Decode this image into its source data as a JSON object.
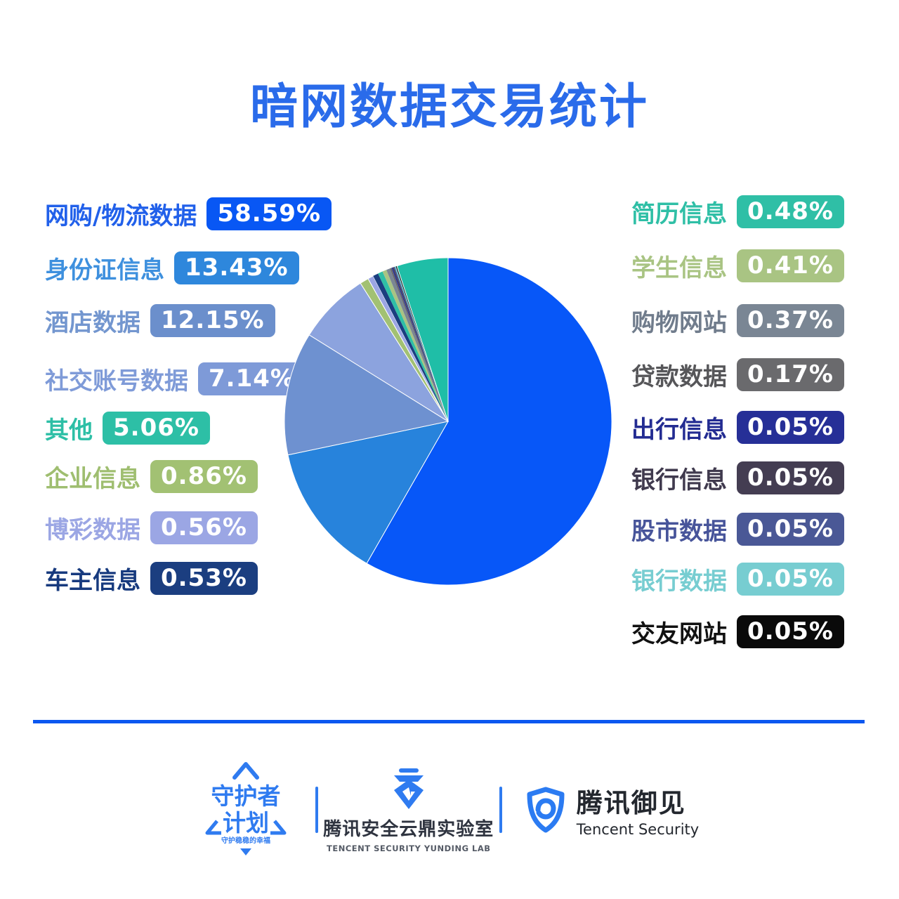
{
  "title": "暗网数据交易统计",
  "title_color": "#2A6BEA",
  "accent_color": "#0B57F0",
  "legend": {
    "left": [
      {
        "label": "网购/物流数据",
        "display": "58.59%",
        "value": 58.59,
        "color": "#0857F4",
        "text_color": "#2160EA"
      },
      {
        "label": "身份证信息",
        "display": "13.43%",
        "value": 13.43,
        "color": "#2E87DC",
        "text_color": "#3E90DE"
      },
      {
        "label": "酒店数据",
        "display": "12.15%",
        "value": 12.15,
        "color": "#6B8FCC",
        "text_color": "#7396CF"
      },
      {
        "label": "社交账号数据",
        "display": "7.14%",
        "value": 7.14,
        "color": "#7E9AD8",
        "text_color": "#7F9BD8"
      },
      {
        "label": "其他",
        "display": "5.06%",
        "value": 5.06,
        "color": "#2DBFA6",
        "text_color": "#2DBFA6"
      },
      {
        "label": "企业信息",
        "display": "0.86%",
        "value": 0.86,
        "color": "#A2C173",
        "text_color": "#9FBE70"
      },
      {
        "label": "博彩数据",
        "display": "0.56%",
        "value": 0.56,
        "color": "#9BA6E4",
        "text_color": "#9BA6E4"
      },
      {
        "label": "车主信息",
        "display": "0.53%",
        "value": 0.53,
        "color": "#1B3E80",
        "text_color": "#173A7E"
      }
    ],
    "right": [
      {
        "label": "简历信息",
        "display": "0.48%",
        "value": 0.48,
        "color": "#2FBFA6",
        "text_color": "#2FBFA6"
      },
      {
        "label": "学生信息",
        "display": "0.41%",
        "value": 0.41,
        "color": "#A9C483",
        "text_color": "#A9C483"
      },
      {
        "label": "购物网站",
        "display": "0.37%",
        "value": 0.37,
        "color": "#7A8694",
        "text_color": "#707C8C"
      },
      {
        "label": "贷款数据",
        "display": "0.17%",
        "value": 0.17,
        "color": "#6A6A6D",
        "text_color": "#565659"
      },
      {
        "label": "出行信息",
        "display": "0.05%",
        "value": 0.05,
        "color": "#262F97",
        "text_color": "#232C92"
      },
      {
        "label": "银行信息",
        "display": "0.05%",
        "value": 0.05,
        "color": "#443D52",
        "text_color": "#403A4E"
      },
      {
        "label": "股市数据",
        "display": "0.05%",
        "value": 0.05,
        "color": "#4A5896",
        "text_color": "#47549A"
      },
      {
        "label": "银行数据",
        "display": "0.05%",
        "value": 0.05,
        "color": "#77CDD1",
        "text_color": "#77CDD1"
      },
      {
        "label": "交友网站",
        "display": "0.05%",
        "value": 0.05,
        "color": "#0A0A0A",
        "text_color": "#111111"
      }
    ]
  },
  "chart_data": {
    "type": "pie",
    "title": "暗网数据交易统计",
    "unit": "%",
    "start_angle_deg": -90,
    "direction": "clockwise",
    "slices": [
      {
        "label": "网购/物流数据",
        "value": 58.59,
        "color": "#0757F8"
      },
      {
        "label": "身份证信息",
        "value": 13.43,
        "color": "#2783DC"
      },
      {
        "label": "酒店数据",
        "value": 12.15,
        "color": "#6E91D0"
      },
      {
        "label": "社交账号数据",
        "value": 7.14,
        "color": "#8CA3DE"
      },
      {
        "label": "企业信息",
        "value": 0.86,
        "color": "#A2C173"
      },
      {
        "label": "博彩数据",
        "value": 0.56,
        "color": "#9BA6E4"
      },
      {
        "label": "车主信息",
        "value": 0.53,
        "color": "#1B3E80"
      },
      {
        "label": "简历信息",
        "value": 0.48,
        "color": "#2FBFA6"
      },
      {
        "label": "学生信息",
        "value": 0.41,
        "color": "#A9C483"
      },
      {
        "label": "购物网站",
        "value": 0.37,
        "color": "#7A8694"
      },
      {
        "label": "贷款数据",
        "value": 0.17,
        "color": "#6A6A6D"
      },
      {
        "label": "出行信息",
        "value": 0.05,
        "color": "#262F97"
      },
      {
        "label": "银行信息",
        "value": 0.05,
        "color": "#443D52"
      },
      {
        "label": "股市数据",
        "value": 0.05,
        "color": "#4A5896"
      },
      {
        "label": "银行数据",
        "value": 0.05,
        "color": "#77CDD1"
      },
      {
        "label": "交友网站",
        "value": 0.05,
        "color": "#0A0A0A"
      },
      {
        "label": "其他",
        "value": 5.06,
        "color": "#1FBEA7"
      }
    ]
  },
  "footer": {
    "guardian": {
      "line1": "守护者",
      "line2": "计划",
      "slogan": "守护稳稳的幸福"
    },
    "yunding": {
      "name": "腾讯安全云鼎实验室",
      "name_en": "TENCENT SECURITY YUNDING LAB"
    },
    "yujian": {
      "name": "腾讯御见",
      "name_en": "Tencent Security"
    }
  }
}
